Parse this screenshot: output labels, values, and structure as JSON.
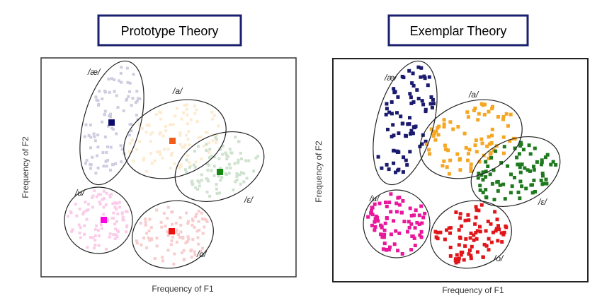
{
  "colors": {
    "ae": "#1a1a6e",
    "a": "#f5a623",
    "e": "#1f7a1f",
    "u": "#e8179b",
    "o": "#e0161b"
  },
  "panels": [
    {
      "title": "Prototype Theory",
      "xlabel": "Frequency of F1",
      "ylabel": "Frequency of F2",
      "mode": "prototype",
      "clusters": [
        {
          "label": "/æ/",
          "key": "ae"
        },
        {
          "label": "/a/",
          "key": "a"
        },
        {
          "label": "/ɛ/",
          "key": "e"
        },
        {
          "label": "/u/",
          "key": "u"
        },
        {
          "label": "/o/",
          "key": "o"
        }
      ]
    },
    {
      "title": "Exemplar Theory",
      "xlabel": "Frequency of F1",
      "ylabel": "Frequency of F2",
      "mode": "exemplar",
      "clusters": [
        {
          "label": "/æ/",
          "key": "ae"
        },
        {
          "label": "/a/",
          "key": "a"
        },
        {
          "label": "/ɛ/",
          "key": "e"
        },
        {
          "label": "/u/",
          "key": "u"
        },
        {
          "label": "/o/",
          "key": "o"
        }
      ]
    }
  ]
}
